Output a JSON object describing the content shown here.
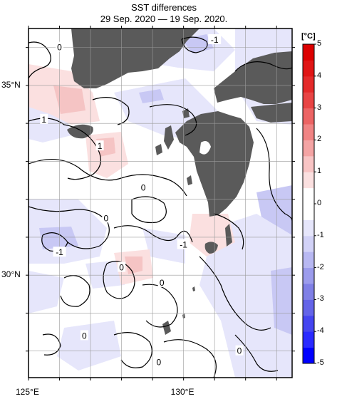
{
  "title": "SST differences",
  "subtitle": "29 Sep. 2020 — 19 Sep. 2020.",
  "unit": "[°C]",
  "lat_labels": [
    {
      "text": "35°N",
      "lat": 35
    },
    {
      "text": "30°N",
      "lat": 30
    }
  ],
  "lon_labels": [
    {
      "text": "125°E",
      "lon": 125
    },
    {
      "text": "130°E",
      "lon": 130
    }
  ],
  "map_extent": {
    "lon_min": 125,
    "lon_max": 133.5,
    "lat_min": 27.3,
    "lat_max": 36.5
  },
  "colorbar": {
    "min": -5,
    "max": 5,
    "tick_labels": [
      "5",
      "4",
      "3",
      "2",
      "1",
      "0",
      "-1",
      "-2",
      "-3",
      "-4",
      "-5"
    ],
    "colors": [
      "#0000ff",
      "#2a2aff",
      "#4545f0",
      "#6464e8",
      "#8080e6",
      "#9c9cec",
      "#b8b8f2",
      "#d2d2f7",
      "#e6e6fb",
      "#ffffff",
      "#ffffff",
      "#fbe0e0",
      "#f8c4c4",
      "#f4a4a4",
      "#f08484",
      "#ec6464",
      "#e84444",
      "#e42a2a",
      "#e01515",
      "#dc0000"
    ]
  },
  "contour_labels": [
    {
      "text": "0",
      "lon": 126.0,
      "lat": 36.0
    },
    {
      "text": "-1",
      "lon": 131.0,
      "lat": 36.2
    },
    {
      "text": "1",
      "lon": 125.5,
      "lat": 34.1
    },
    {
      "text": "1",
      "lon": 127.3,
      "lat": 33.4
    },
    {
      "text": "0",
      "lon": 128.7,
      "lat": 32.3
    },
    {
      "text": "0",
      "lon": 127.5,
      "lat": 31.5
    },
    {
      "text": "-1",
      "lon": 126.0,
      "lat": 30.6
    },
    {
      "text": "-1",
      "lon": 130.0,
      "lat": 30.8
    },
    {
      "text": "0",
      "lon": 128.0,
      "lat": 30.2
    },
    {
      "text": "0",
      "lon": 129.3,
      "lat": 29.8
    },
    {
      "text": "0",
      "lon": 126.8,
      "lat": 28.4
    },
    {
      "text": "0",
      "lon": 131.8,
      "lat": 28.0
    },
    {
      "text": "0",
      "lon": 129.2,
      "lat": 27.7
    }
  ],
  "colors": {
    "land": "#5a5a5a",
    "frame": "#000000",
    "grid": "#9a9a9a",
    "contour": "#000000",
    "warm_light": "#fbe0e0",
    "warm_mid": "#f5c4c4",
    "cool_light": "#e6e6fb",
    "cool_mid": "#c8c8f4"
  }
}
